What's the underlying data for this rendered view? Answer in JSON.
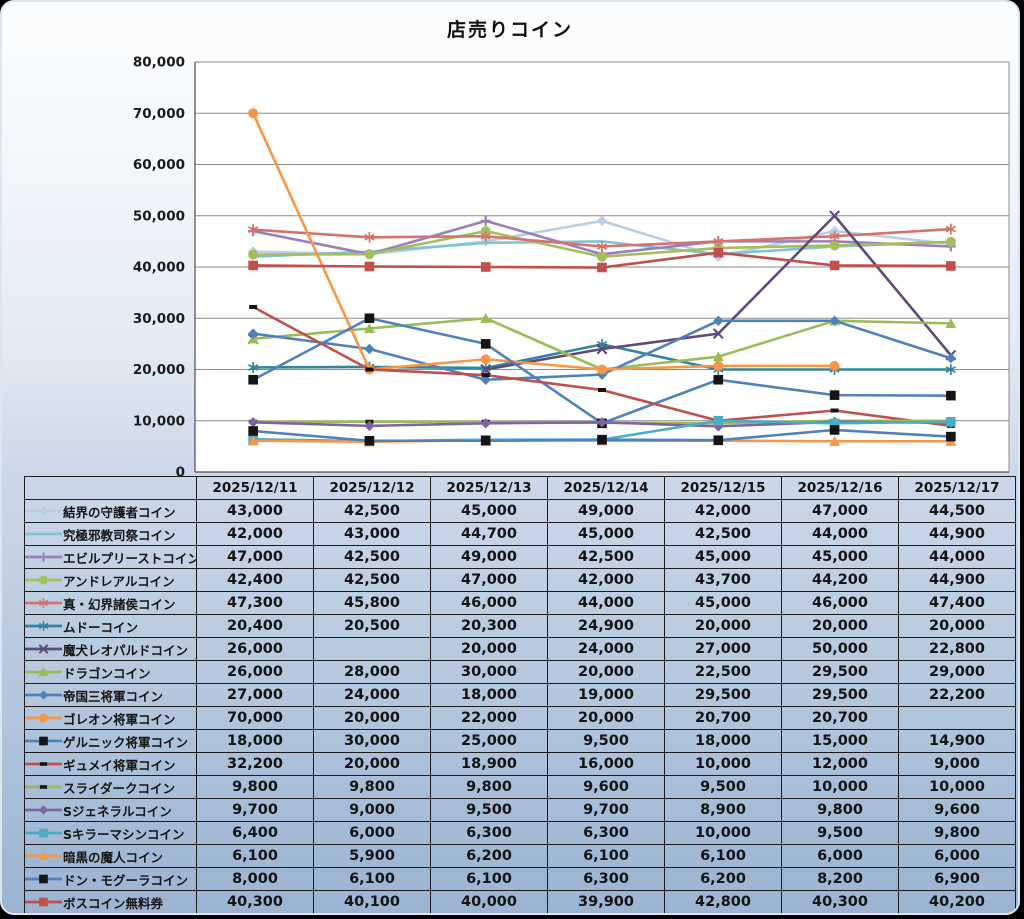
{
  "chart_data": {
    "type": "line",
    "title": "店売りコイン",
    "x": [
      "2025/12/11",
      "2025/12/12",
      "2025/12/13",
      "2025/12/14",
      "2025/12/15",
      "2025/12/16",
      "2025/12/17"
    ],
    "ylim": [
      0,
      80000
    ],
    "ytick_step": 10000,
    "grid": true,
    "legend_position": "table-rows-left",
    "colors": {
      "gridline": "#8c8c8c",
      "axis": "#4d4d4d",
      "plot_background": "#ffffff",
      "tick_label": "#1a1a1a"
    },
    "series": [
      {
        "name": "結界の守護者コイン",
        "color": "#b9cde5",
        "marker": "diamond",
        "marker_color": "#b9cde5",
        "values": [
          43000,
          42500,
          45000,
          49000,
          42000,
          47000,
          44500
        ]
      },
      {
        "name": "究極邪教司祭コイン",
        "color": "#7ec4cf",
        "marker": "none",
        "marker_color": "#7ec4cf",
        "values": [
          42000,
          43000,
          44700,
          45000,
          42500,
          44000,
          44900
        ]
      },
      {
        "name": "エビルプリーストコイン",
        "color": "#9a7fba",
        "marker": "plus",
        "marker_color": "#9a7fba",
        "values": [
          47000,
          42500,
          49000,
          42500,
          45000,
          45000,
          44000
        ]
      },
      {
        "name": "アンドレアルコイン",
        "color": "#a6bd5c",
        "marker": "circle",
        "marker_color": "#a6bd5c",
        "values": [
          42400,
          42500,
          47000,
          42000,
          43700,
          44200,
          44900
        ]
      },
      {
        "name": "真・幻界諸侯コイン",
        "color": "#d4736c",
        "marker": "star",
        "marker_color": "#d4736c",
        "values": [
          47300,
          45800,
          46000,
          44000,
          45000,
          46000,
          47400
        ]
      },
      {
        "name": "ムドーコイン",
        "color": "#31859c",
        "marker": "star",
        "marker_color": "#31859c",
        "values": [
          20400,
          20500,
          20300,
          24900,
          20000,
          20000,
          20000
        ]
      },
      {
        "name": "魔犬レオパルドコイン",
        "color": "#5f497a",
        "marker": "x",
        "marker_color": "#5f497a",
        "values": [
          26000,
          null,
          20000,
          24000,
          27000,
          50000,
          22800
        ]
      },
      {
        "name": "ドラゴンコイン",
        "color": "#9bbb59",
        "marker": "triangle",
        "marker_color": "#9bbb59",
        "values": [
          26000,
          28000,
          30000,
          20000,
          22500,
          29500,
          29000
        ]
      },
      {
        "name": "帝国三将軍コイン",
        "color": "#4f81bd",
        "marker": "diamond",
        "marker_color": "#4f81bd",
        "values": [
          27000,
          24000,
          18000,
          19000,
          29500,
          29500,
          22200
        ]
      },
      {
        "name": "ゴレオン将軍コイン",
        "color": "#f79646",
        "marker": "circle",
        "marker_color": "#f79646",
        "values": [
          70000,
          20000,
          22000,
          20000,
          20700,
          20700,
          null
        ]
      },
      {
        "name": "ゲルニック将軍コイン",
        "color": "#4f81bd",
        "marker": "square",
        "marker_color": "#141414",
        "values": [
          18000,
          30000,
          25000,
          9500,
          18000,
          15000,
          14900
        ]
      },
      {
        "name": "ギュメイ将軍コイン",
        "color": "#c0504d",
        "marker": "dash",
        "marker_color": "#141414",
        "values": [
          32200,
          20000,
          18900,
          16000,
          10000,
          12000,
          9000
        ]
      },
      {
        "name": "スライダークコイン",
        "color": "#9bbb59",
        "marker": "dash",
        "marker_color": "#141414",
        "values": [
          9800,
          9800,
          9800,
          9600,
          9500,
          10000,
          10000
        ]
      },
      {
        "name": "Sジェネラルコイン",
        "color": "#8064a2",
        "marker": "diamond",
        "marker_color": "#8064a2",
        "values": [
          9700,
          9000,
          9500,
          9700,
          8900,
          9800,
          9600
        ]
      },
      {
        "name": "Sキラーマシンコイン",
        "color": "#4bacc6",
        "marker": "square",
        "marker_color": "#4bacc6",
        "values": [
          6400,
          6000,
          6300,
          6300,
          10000,
          9500,
          9800
        ]
      },
      {
        "name": "暗黒の魔人コイン",
        "color": "#f79646",
        "marker": "triangle",
        "marker_color": "#f79646",
        "values": [
          6100,
          5900,
          6200,
          6100,
          6100,
          6000,
          6000
        ]
      },
      {
        "name": "ドン・モグーラコイン",
        "color": "#4f81bd",
        "marker": "square",
        "marker_color": "#141414",
        "values": [
          8000,
          6100,
          6100,
          6300,
          6200,
          8200,
          6900
        ]
      },
      {
        "name": "ボスコイン無料券",
        "color": "#c0504d",
        "marker": "square",
        "marker_color": "#c0504d",
        "values": [
          40300,
          40100,
          40000,
          39900,
          42800,
          40300,
          40200
        ]
      }
    ]
  }
}
